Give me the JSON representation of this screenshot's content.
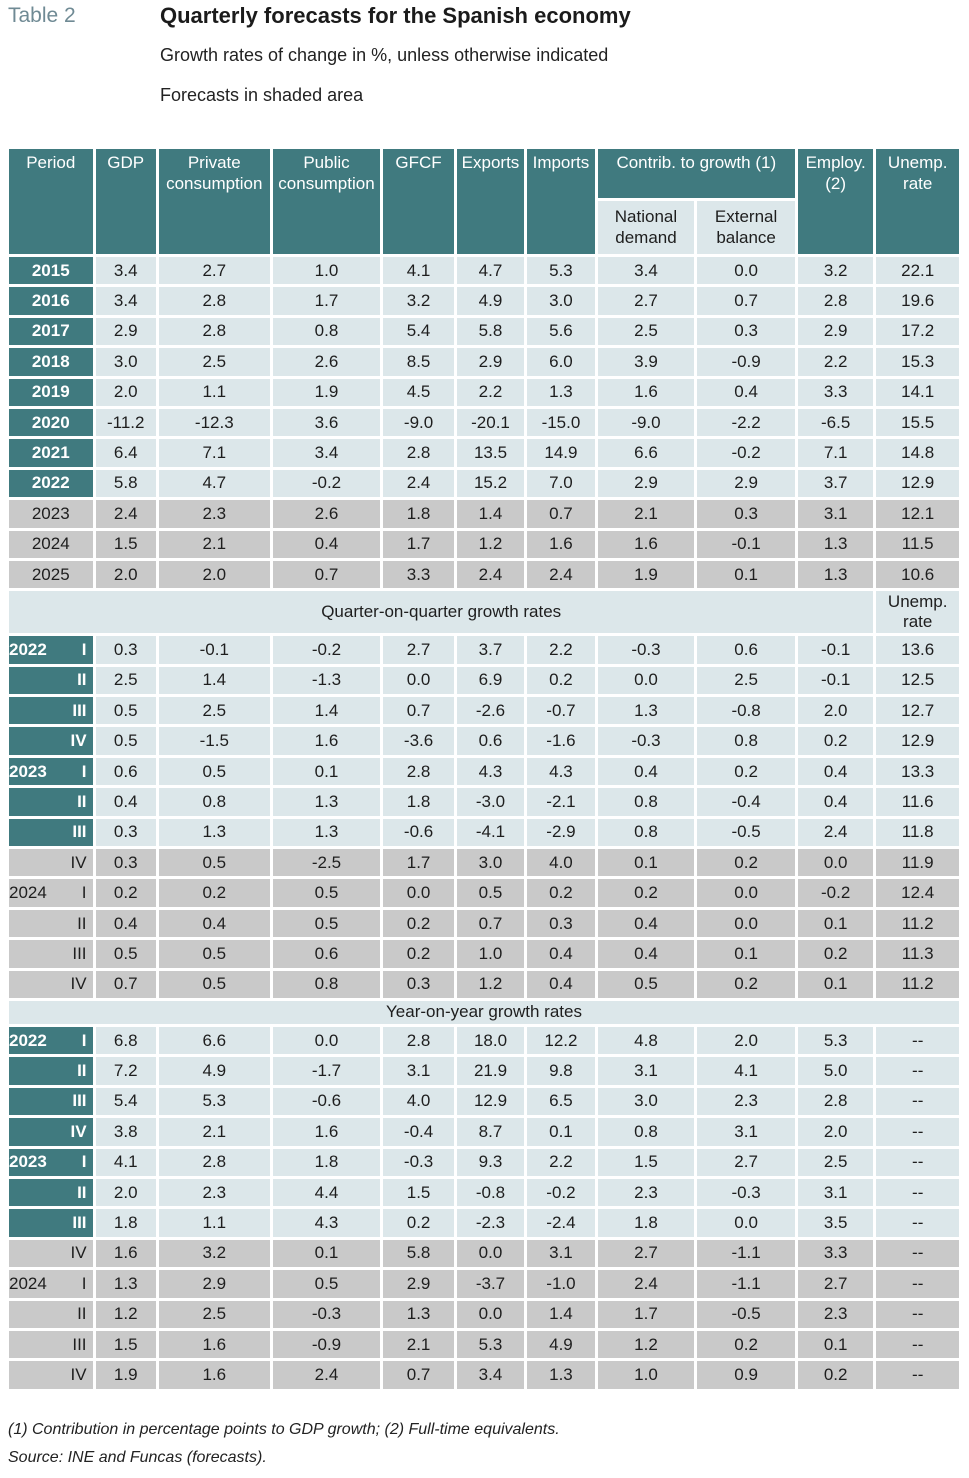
{
  "table_label": "Table 2",
  "title": "Quarterly forecasts for the Spanish economy",
  "subtitle": "Growth rates of change in %, unless otherwise indicated",
  "note_shaded": "Forecasts in shaded area",
  "headers": {
    "period": "Period",
    "gdp": "GDP",
    "private": "Private consumption",
    "public": "Public consumption",
    "gfcf": "GFCF",
    "exports": "Exports",
    "imports": "Imports",
    "contrib": "Contrib. to growth (1)",
    "national": "National demand",
    "external": "External balance",
    "employ": "Employ. (2)",
    "unemp": "Unemp. rate"
  },
  "section_qoq": {
    "title": "Quarter-on-quarter growth rates",
    "unemp": "Unemp. rate"
  },
  "section_yoy": {
    "title": "Year-on-year growth rates"
  },
  "annual": [
    {
      "year": "2015",
      "f": false,
      "v": [
        "3.4",
        "2.7",
        "1.0",
        "4.1",
        "4.7",
        "5.3",
        "3.4",
        "0.0",
        "3.2",
        "22.1"
      ]
    },
    {
      "year": "2016",
      "f": false,
      "v": [
        "3.4",
        "2.8",
        "1.7",
        "3.2",
        "4.9",
        "3.0",
        "2.7",
        "0.7",
        "2.8",
        "19.6"
      ]
    },
    {
      "year": "2017",
      "f": false,
      "v": [
        "2.9",
        "2.8",
        "0.8",
        "5.4",
        "5.8",
        "5.6",
        "2.5",
        "0.3",
        "2.9",
        "17.2"
      ]
    },
    {
      "year": "2018",
      "f": false,
      "v": [
        "3.0",
        "2.5",
        "2.6",
        "8.5",
        "2.9",
        "6.0",
        "3.9",
        "-0.9",
        "2.2",
        "15.3"
      ]
    },
    {
      "year": "2019",
      "f": false,
      "v": [
        "2.0",
        "1.1",
        "1.9",
        "4.5",
        "2.2",
        "1.3",
        "1.6",
        "0.4",
        "3.3",
        "14.1"
      ]
    },
    {
      "year": "2020",
      "f": false,
      "v": [
        "-11.2",
        "-12.3",
        "3.6",
        "-9.0",
        "-20.1",
        "-15.0",
        "-9.0",
        "-2.2",
        "-6.5",
        "15.5"
      ]
    },
    {
      "year": "2021",
      "f": false,
      "v": [
        "6.4",
        "7.1",
        "3.4",
        "2.8",
        "13.5",
        "14.9",
        "6.6",
        "-0.2",
        "7.1",
        "14.8"
      ]
    },
    {
      "year": "2022",
      "f": false,
      "v": [
        "5.8",
        "4.7",
        "-0.2",
        "2.4",
        "15.2",
        "7.0",
        "2.9",
        "2.9",
        "3.7",
        "12.9"
      ]
    },
    {
      "year": "2023",
      "f": true,
      "v": [
        "2.4",
        "2.3",
        "2.6",
        "1.8",
        "1.4",
        "0.7",
        "2.1",
        "0.3",
        "3.1",
        "12.1"
      ]
    },
    {
      "year": "2024",
      "f": true,
      "v": [
        "1.5",
        "2.1",
        "0.4",
        "1.7",
        "1.2",
        "1.6",
        "1.6",
        "-0.1",
        "1.3",
        "11.5"
      ]
    },
    {
      "year": "2025",
      "f": true,
      "v": [
        "2.0",
        "2.0",
        "0.7",
        "3.3",
        "2.4",
        "2.4",
        "1.9",
        "0.1",
        "1.3",
        "10.6"
      ]
    }
  ],
  "qoq": [
    {
      "year": "2022",
      "q": "I",
      "f": false,
      "v": [
        "0.3",
        "-0.1",
        "-0.2",
        "2.7",
        "3.7",
        "2.2",
        "-0.3",
        "0.6",
        "-0.1",
        "13.6"
      ]
    },
    {
      "year": "",
      "q": "II",
      "f": false,
      "v": [
        "2.5",
        "1.4",
        "-1.3",
        "0.0",
        "6.9",
        "0.2",
        "0.0",
        "2.5",
        "-0.1",
        "12.5"
      ]
    },
    {
      "year": "",
      "q": "III",
      "f": false,
      "v": [
        "0.5",
        "2.5",
        "1.4",
        "0.7",
        "-2.6",
        "-0.7",
        "1.3",
        "-0.8",
        "2.0",
        "12.7"
      ]
    },
    {
      "year": "",
      "q": "IV",
      "f": false,
      "v": [
        "0.5",
        "-1.5",
        "1.6",
        "-3.6",
        "0.6",
        "-1.6",
        "-0.3",
        "0.8",
        "0.2",
        "12.9"
      ]
    },
    {
      "year": "2023",
      "q": "I",
      "f": false,
      "v": [
        "0.6",
        "0.5",
        "0.1",
        "2.8",
        "4.3",
        "4.3",
        "0.4",
        "0.2",
        "0.4",
        "13.3"
      ]
    },
    {
      "year": "",
      "q": "II",
      "f": false,
      "v": [
        "0.4",
        "0.8",
        "1.3",
        "1.8",
        "-3.0",
        "-2.1",
        "0.8",
        "-0.4",
        "0.4",
        "11.6"
      ]
    },
    {
      "year": "",
      "q": "III",
      "f": false,
      "v": [
        "0.3",
        "1.3",
        "1.3",
        "-0.6",
        "-4.1",
        "-2.9",
        "0.8",
        "-0.5",
        "2.4",
        "11.8"
      ]
    },
    {
      "year": "",
      "q": "IV",
      "f": true,
      "v": [
        "0.3",
        "0.5",
        "-2.5",
        "1.7",
        "3.0",
        "4.0",
        "0.1",
        "0.2",
        "0.0",
        "11.9"
      ]
    },
    {
      "year": "2024",
      "q": "I",
      "f": true,
      "v": [
        "0.2",
        "0.2",
        "0.5",
        "0.0",
        "0.5",
        "0.2",
        "0.2",
        "0.0",
        "-0.2",
        "12.4"
      ]
    },
    {
      "year": "",
      "q": "II",
      "f": true,
      "v": [
        "0.4",
        "0.4",
        "0.5",
        "0.2",
        "0.7",
        "0.3",
        "0.4",
        "0.0",
        "0.1",
        "11.2"
      ]
    },
    {
      "year": "",
      "q": "III",
      "f": true,
      "v": [
        "0.5",
        "0.5",
        "0.6",
        "0.2",
        "1.0",
        "0.4",
        "0.4",
        "0.1",
        "0.2",
        "11.3"
      ]
    },
    {
      "year": "",
      "q": "IV",
      "f": true,
      "v": [
        "0.7",
        "0.5",
        "0.8",
        "0.3",
        "1.2",
        "0.4",
        "0.5",
        "0.2",
        "0.1",
        "11.2"
      ]
    }
  ],
  "yoy": [
    {
      "year": "2022",
      "q": "I",
      "f": false,
      "v": [
        "6.8",
        "6.6",
        "0.0",
        "2.8",
        "18.0",
        "12.2",
        "4.8",
        "2.0",
        "5.3",
        "--"
      ]
    },
    {
      "year": "",
      "q": "II",
      "f": false,
      "v": [
        "7.2",
        "4.9",
        "-1.7",
        "3.1",
        "21.9",
        "9.8",
        "3.1",
        "4.1",
        "5.0",
        "--"
      ]
    },
    {
      "year": "",
      "q": "III",
      "f": false,
      "v": [
        "5.4",
        "5.3",
        "-0.6",
        "4.0",
        "12.9",
        "6.5",
        "3.0",
        "2.3",
        "2.8",
        "--"
      ]
    },
    {
      "year": "",
      "q": "IV",
      "f": false,
      "v": [
        "3.8",
        "2.1",
        "1.6",
        "-0.4",
        "8.7",
        "0.1",
        "0.8",
        "3.1",
        "2.0",
        "--"
      ]
    },
    {
      "year": "2023",
      "q": "I",
      "f": false,
      "v": [
        "4.1",
        "2.8",
        "1.8",
        "-0.3",
        "9.3",
        "2.2",
        "1.5",
        "2.7",
        "2.5",
        "--"
      ]
    },
    {
      "year": "",
      "q": "II",
      "f": false,
      "v": [
        "2.0",
        "2.3",
        "4.4",
        "1.5",
        "-0.8",
        "-0.2",
        "2.3",
        "-0.3",
        "3.1",
        "--"
      ]
    },
    {
      "year": "",
      "q": "III",
      "f": false,
      "v": [
        "1.8",
        "1.1",
        "4.3",
        "0.2",
        "-2.3",
        "-2.4",
        "1.8",
        "0.0",
        "3.5",
        "--"
      ]
    },
    {
      "year": "",
      "q": "IV",
      "f": true,
      "v": [
        "1.6",
        "3.2",
        "0.1",
        "5.8",
        "0.0",
        "3.1",
        "2.7",
        "-1.1",
        "3.3",
        "--"
      ]
    },
    {
      "year": "2024",
      "q": "I",
      "f": true,
      "v": [
        "1.3",
        "2.9",
        "0.5",
        "2.9",
        "-3.7",
        "-1.0",
        "2.4",
        "-1.1",
        "2.7",
        "--"
      ]
    },
    {
      "year": "",
      "q": "II",
      "f": true,
      "v": [
        "1.2",
        "2.5",
        "-0.3",
        "1.3",
        "0.0",
        "1.4",
        "1.7",
        "-0.5",
        "2.3",
        "--"
      ]
    },
    {
      "year": "",
      "q": "III",
      "f": true,
      "v": [
        "1.5",
        "1.6",
        "-0.9",
        "2.1",
        "5.3",
        "4.9",
        "1.2",
        "0.2",
        "0.1",
        "--"
      ]
    },
    {
      "year": "",
      "q": "IV",
      "f": true,
      "v": [
        "1.9",
        "1.6",
        "2.4",
        "0.7",
        "3.4",
        "1.3",
        "1.0",
        "0.9",
        "0.2",
        "--"
      ]
    }
  ],
  "footnote1": "(1) Contribution in percentage points to GDP growth; (2) Full-time equivalents.",
  "footnote2": "Source: INE and Funcas (forecasts)."
}
